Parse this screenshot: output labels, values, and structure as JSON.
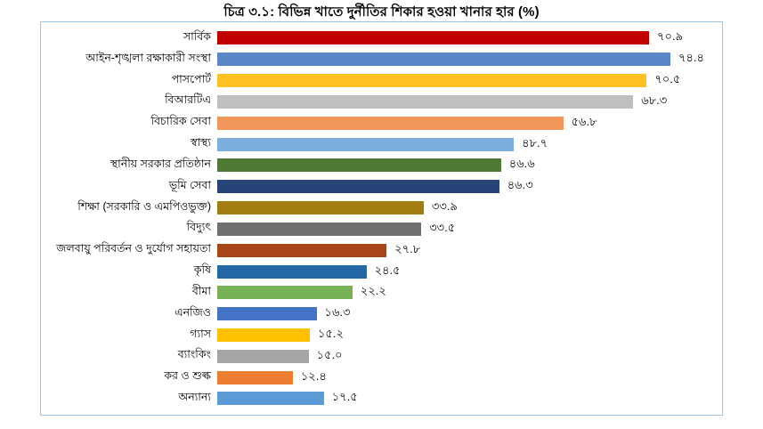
{
  "title": "চিত্র ৩.১: বিভিন্ন খাতে দুর্নীতির শিকার হওয়া খানার হার (%)",
  "frame": {
    "border_color": "#9DC3E6",
    "background": "#ffffff"
  },
  "chart_data": {
    "type": "bar",
    "orientation": "horizontal",
    "title": "চিত্র ৩.১: বিভিন্ন খাতে দুর্নীতির শিকার হওয়া খানার হার (%)",
    "xlabel": "",
    "ylabel": "",
    "xlim": [
      0,
      82
    ],
    "grid": false,
    "legend": false,
    "value_labels_position": "outside-end",
    "categories": [
      "সার্বিক",
      "আইন-শৃঙ্খলা রক্ষাকারী সংস্থা",
      "পাসপোর্ট",
      "বিআরটিএ",
      "বিচারিক সেবা",
      "স্বাস্থ্য",
      "স্থানীয় সরকার প্রতিষ্ঠান",
      "ভূমি সেবা",
      "শিক্ষা (সরকারি ও এমপিওভুক্ত)",
      "বিদ্যুৎ",
      "জলবায়ু পরিবর্তন ও দুর্যোগ সহায়তা",
      "কৃষি",
      "বীমা",
      "এনজিও",
      "গ্যাস",
      "ব্যাংকিং",
      "কর ও শুল্ক",
      "অন্যান্য"
    ],
    "values": [
      70.9,
      74.4,
      70.5,
      68.3,
      56.8,
      48.7,
      46.6,
      46.3,
      33.9,
      33.5,
      27.8,
      24.5,
      22.2,
      16.3,
      15.2,
      15.0,
      12.4,
      17.5
    ],
    "value_labels": [
      "৭০.৯",
      "৭৪.৪",
      "৭০.৫",
      "৬৮.৩",
      "৫৬.৮",
      "৪৮.৭",
      "৪৬.৬",
      "৪৬.৩",
      "৩৩.৯",
      "৩৩.৫",
      "২৭.৮",
      "২৪.৫",
      "২২.২",
      "১৬.৩",
      "১৫.২",
      "১৫.০",
      "১২.৪",
      "১৭.৫"
    ],
    "bar_colors": [
      "#C00000",
      "#5B87C9",
      "#FFC222",
      "#BFBFBF",
      "#F1975A",
      "#7CAFDD",
      "#4E7A35",
      "#264478",
      "#A17E12",
      "#707070",
      "#A8441A",
      "#2268A5",
      "#77B254",
      "#4472C4",
      "#FFC000",
      "#A6A6A6",
      "#ED7D31",
      "#5B9BD5"
    ]
  }
}
